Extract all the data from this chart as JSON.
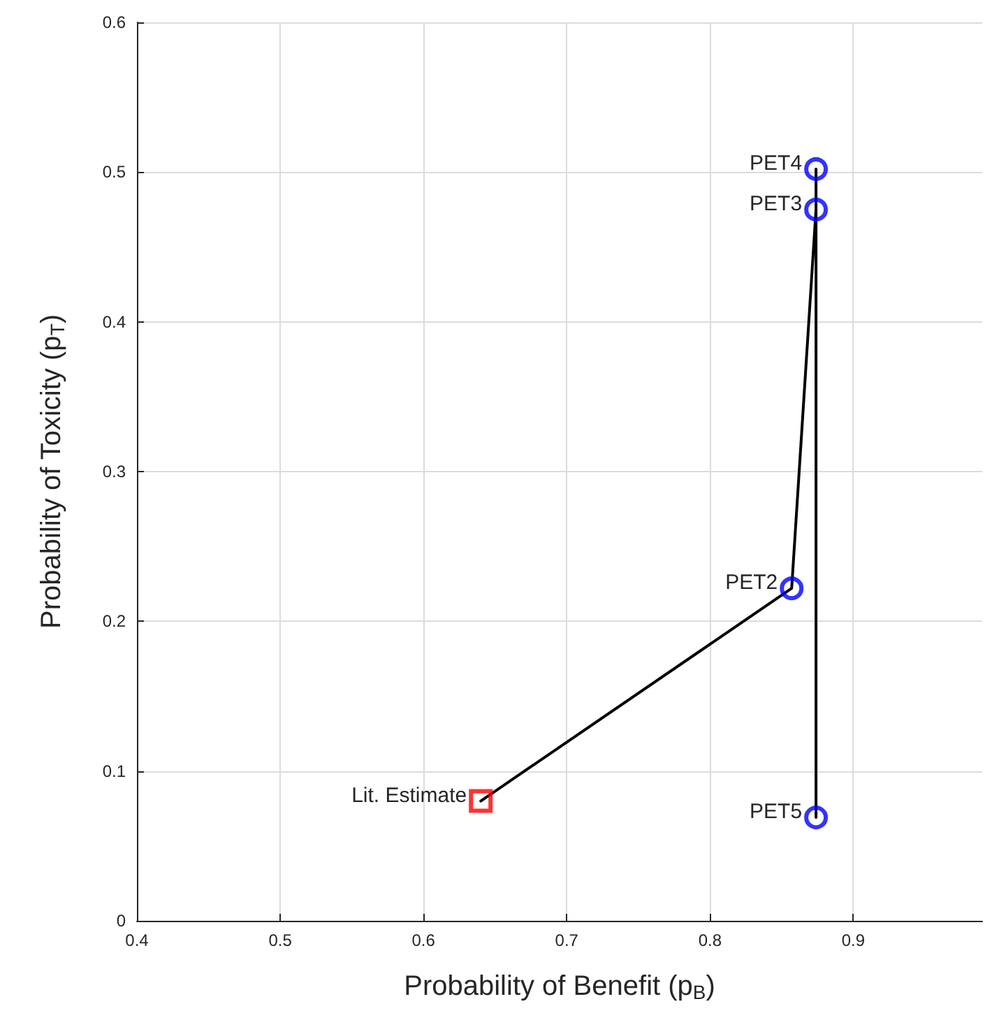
{
  "chart_data": {
    "type": "line",
    "xlabel": "Probability of Benefit (p$_{B}$)",
    "ylabel": "Probability of Toxicity (p$_{T}$)",
    "xlim": [
      0.4,
      0.99
    ],
    "xticks": [
      0.4,
      0.5,
      0.6,
      0.7,
      0.8,
      0.9
    ],
    "ylim": [
      0,
      0.6
    ],
    "yticks": [
      0,
      0.1,
      0.2,
      0.3,
      0.4,
      0.5,
      0.6
    ],
    "grid": true,
    "series": [
      {
        "color": "#000000",
        "marker": "none",
        "x": [
          0.64,
          0.857,
          0.874,
          0.874,
          0.874
        ],
        "values": [
          0.08,
          0.222,
          0.475,
          0.502,
          0.069
        ]
      },
      {
        "type": "scatter",
        "color": "#ff0000",
        "marker": "square",
        "x": [
          0.64
        ],
        "values": [
          0.08
        ]
      },
      {
        "type": "scatter",
        "color": "#0000ff",
        "marker": "circle",
        "x": [
          0.857,
          0.874,
          0.874,
          0.874
        ],
        "values": [
          0.222,
          0.475,
          0.502,
          0.069
        ]
      }
    ],
    "annotations": [
      {
        "text": "Lit. Estimate",
        "x": 0.64,
        "y": 0.08
      },
      {
        "text": "PET2",
        "x": 0.857,
        "y": 0.222
      },
      {
        "text": "PET3",
        "x": 0.874,
        "y": 0.475
      },
      {
        "text": "PET4",
        "x": 0.874,
        "y": 0.502
      },
      {
        "text": "PET5",
        "x": 0.874,
        "y": 0.069
      }
    ]
  }
}
